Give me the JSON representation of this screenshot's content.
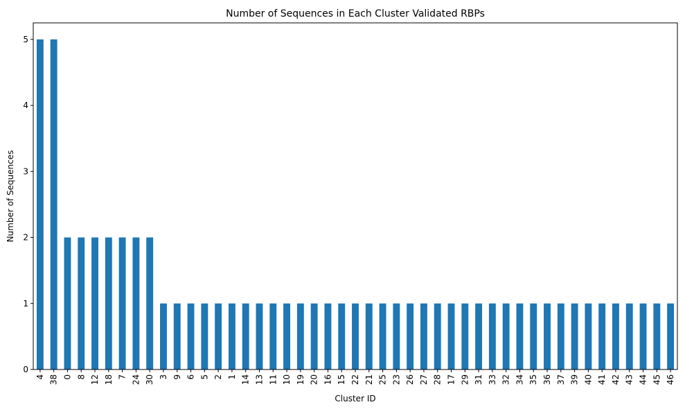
{
  "chart_data": {
    "type": "bar",
    "title": "Number of Sequences in Each Cluster Validated RBPs",
    "xlabel": "Cluster ID",
    "ylabel": "Number of Sequences",
    "categories": [
      "4",
      "38",
      "0",
      "8",
      "12",
      "18",
      "7",
      "24",
      "30",
      "3",
      "9",
      "6",
      "5",
      "2",
      "1",
      "14",
      "13",
      "11",
      "10",
      "19",
      "20",
      "16",
      "15",
      "22",
      "21",
      "25",
      "23",
      "26",
      "27",
      "28",
      "17",
      "29",
      "31",
      "33",
      "32",
      "34",
      "35",
      "36",
      "37",
      "39",
      "40",
      "41",
      "42",
      "43",
      "44",
      "45",
      "46"
    ],
    "values": [
      5,
      5,
      2,
      2,
      2,
      2,
      2,
      2,
      2,
      1,
      1,
      1,
      1,
      1,
      1,
      1,
      1,
      1,
      1,
      1,
      1,
      1,
      1,
      1,
      1,
      1,
      1,
      1,
      1,
      1,
      1,
      1,
      1,
      1,
      1,
      1,
      1,
      1,
      1,
      1,
      1,
      1,
      1,
      1,
      1,
      1,
      1
    ],
    "ylim": [
      0,
      5.25
    ],
    "yticks": [
      0,
      1,
      2,
      3,
      4,
      5
    ],
    "bar_color": "#1f77b4",
    "grid": false,
    "legend": "none"
  }
}
